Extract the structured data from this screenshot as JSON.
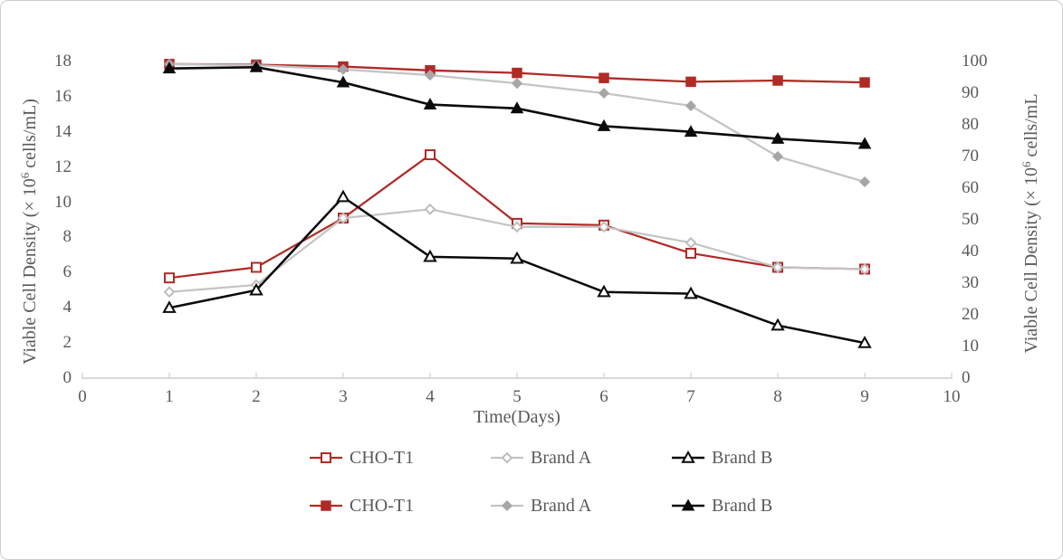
{
  "chart_data": {
    "type": "line",
    "title": "",
    "xlabel": "Time(Days)",
    "ylabel_left": "Viable Cell Density (× 10⁶ cells/mL)",
    "ylabel_left_parts": {
      "prefix": "Viable Cell Density (× 10",
      "sup": "6",
      "suffix": " cells/mL)"
    },
    "ylabel_right": "Viable Cell Density (× 10⁶ cells/mL",
    "ylabel_right_parts": {
      "prefix": "Viable Cell Density (× 10",
      "sup": "6",
      "suffix": " cells/mL"
    },
    "xlim": [
      0,
      10
    ],
    "x_ticks": [
      0,
      1,
      2,
      3,
      4,
      5,
      6,
      7,
      8,
      9,
      10
    ],
    "left_ylim": [
      0,
      18
    ],
    "left_ticks": [
      0,
      2,
      4,
      6,
      8,
      10,
      12,
      14,
      16,
      18
    ],
    "right_ylim": [
      0,
      100
    ],
    "right_ticks": [
      0,
      10,
      20,
      30,
      40,
      50,
      60,
      70,
      80,
      90,
      100
    ],
    "grid": false,
    "legend_position": "bottom",
    "x": [
      1,
      2,
      3,
      4,
      5,
      6,
      7,
      8,
      9
    ],
    "series": [
      {
        "name": "CHO-T1",
        "axis": "left",
        "marker": "square",
        "fill": "open",
        "color": "#B02A26",
        "marker_stroke": "#B02A26",
        "marker_fill": "#FFFFFF",
        "line_width": 2.2,
        "values": [
          5.7,
          6.3,
          9.1,
          12.7,
          8.8,
          8.7,
          7.1,
          6.3,
          6.2
        ]
      },
      {
        "name": "Brand A",
        "axis": "left",
        "marker": "diamond",
        "fill": "open",
        "color": "#C4C4C4",
        "marker_stroke": "#BDBDBD",
        "marker_fill": "#FFFFFF",
        "line_width": 2.2,
        "values": [
          4.9,
          5.3,
          9.1,
          9.6,
          8.6,
          8.6,
          7.7,
          6.3,
          6.2
        ]
      },
      {
        "name": "Brand B",
        "axis": "left",
        "marker": "triangle",
        "fill": "open",
        "color": "#0A0A0A",
        "marker_stroke": "#0A0A0A",
        "marker_fill": "#FFFFFF",
        "line_width": 2.5,
        "values": [
          4.0,
          5.0,
          10.3,
          6.9,
          6.8,
          4.9,
          4.8,
          3.0,
          2.0
        ]
      },
      {
        "name": "CHO-T1",
        "axis": "right",
        "marker": "square",
        "fill": "filled",
        "color": "#B02A26",
        "marker_stroke": "#B02A26",
        "marker_fill": "#B02A26",
        "line_width": 2.3,
        "values": [
          99.2,
          99.0,
          98.4,
          97.2,
          96.4,
          94.8,
          93.6,
          94.0,
          93.4
        ]
      },
      {
        "name": "Brand A",
        "axis": "right",
        "marker": "diamond",
        "fill": "filled",
        "color": "#C4C4C4",
        "marker_stroke": "#A6A6A6",
        "marker_fill": "#A6A6A6",
        "line_width": 2.3,
        "values": [
          99.2,
          98.8,
          97.5,
          95.7,
          93.1,
          90.0,
          86.0,
          70.0,
          62.0
        ]
      },
      {
        "name": "Brand B",
        "axis": "right",
        "marker": "triangle",
        "fill": "filled",
        "color": "#0A0A0A",
        "marker_stroke": "#0A0A0A",
        "marker_fill": "#0A0A0A",
        "line_width": 2.6,
        "values": [
          97.8,
          98.2,
          93.4,
          86.4,
          85.2,
          79.6,
          77.8,
          75.6,
          74.0
        ]
      }
    ]
  },
  "style": {
    "axis_line_color": "#D9D9D9",
    "text_color": "#595959",
    "accent_red": "#B02A26",
    "accent_gray": "#A6A6A6",
    "accent_black": "#0A0A0A"
  }
}
